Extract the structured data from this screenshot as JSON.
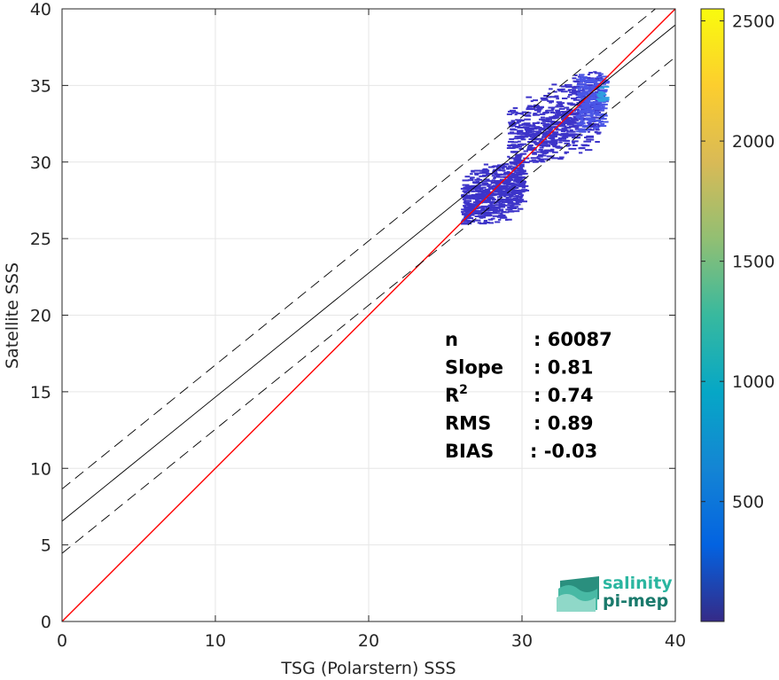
{
  "chart_data": {
    "type": "heatmap",
    "xlabel": "TSG (Polarstern) SSS",
    "ylabel": "Satellite SSS",
    "xlim": [
      0,
      40
    ],
    "ylim": [
      0,
      40
    ],
    "x_ticks": [
      0,
      10,
      20,
      30,
      40
    ],
    "y_ticks": [
      0,
      5,
      10,
      15,
      20,
      25,
      30,
      35,
      40
    ],
    "grid": true,
    "colorbar": {
      "colormap": "parula",
      "range": [
        1,
        2550
      ],
      "ticks": [
        500,
        1000,
        1500,
        2000,
        2500
      ],
      "stops": [
        "#352a87",
        "#0363e1",
        "#1485d4",
        "#06a7c6",
        "#38b99e",
        "#92bf73",
        "#d9ba56",
        "#fcce2e",
        "#f9fb0e"
      ]
    },
    "density_blobs": [
      {
        "x_range": [
          29.0,
          35.0
        ],
        "y_range": [
          30.0,
          36.0
        ],
        "density": "low"
      },
      {
        "x_range": [
          26.0,
          30.0
        ],
        "y_range": [
          26.0,
          30.0
        ],
        "density": "low"
      },
      {
        "x_range": [
          33.5,
          35.3
        ],
        "y_range": [
          32.0,
          35.8
        ],
        "density": "medium"
      },
      {
        "x_range": [
          34.8,
          35.3
        ],
        "y_range": [
          34.0,
          35.0
        ],
        "density": "high"
      }
    ],
    "lines": [
      {
        "name": "identity",
        "intercept": 0,
        "slope": 1,
        "color": "#ff0000",
        "style": "solid"
      },
      {
        "name": "fit",
        "intercept": 6.55,
        "slope": 0.81,
        "color": "#000000",
        "style": "solid"
      },
      {
        "name": "fit-upper",
        "intercept": 8.65,
        "slope": 0.81,
        "color": "#000000",
        "style": "dashed"
      },
      {
        "name": "fit-lower",
        "intercept": 4.45,
        "slope": 0.81,
        "color": "#000000",
        "style": "dashed"
      }
    ],
    "stats": [
      {
        "label": "n",
        "value": ": 60087"
      },
      {
        "label": "Slope",
        "value": ": 0.81"
      },
      {
        "label": "R",
        "sup": "2",
        "value": ": 0.74"
      },
      {
        "label": "RMS",
        "value": ": 0.89"
      },
      {
        "label": "BIAS",
        "value": ": -0.03"
      }
    ]
  },
  "logo": {
    "line1": "salinity",
    "line2": "pi-mep",
    "color_primary": "#2bb6a0",
    "color_secondary": "#1a7a6c"
  }
}
